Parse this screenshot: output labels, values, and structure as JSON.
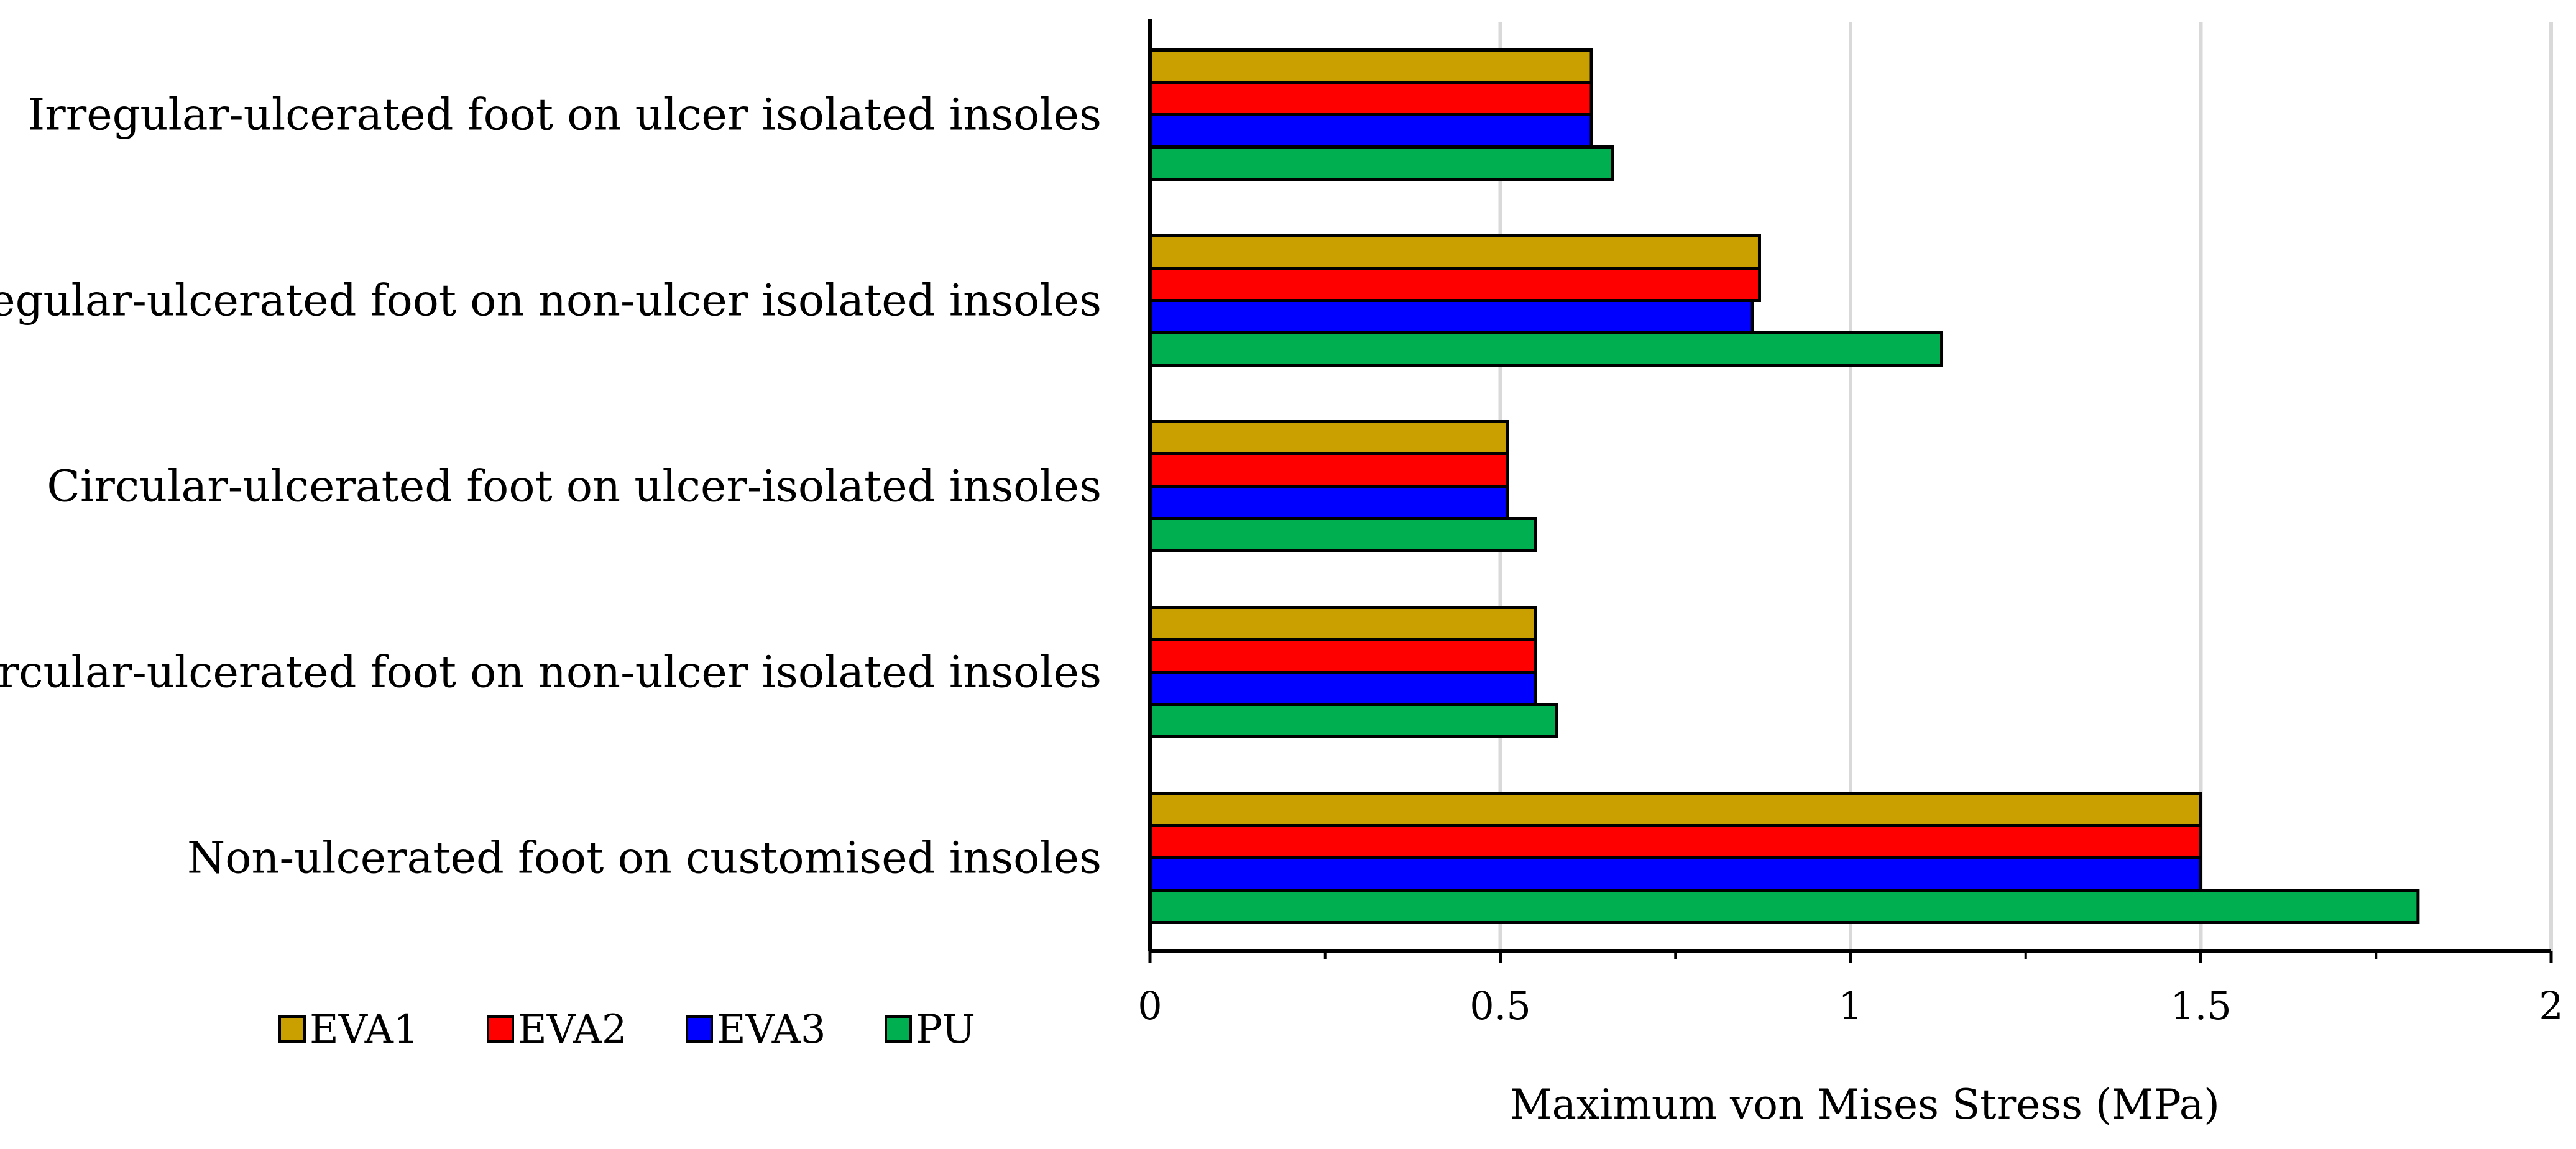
{
  "chart_data": {
    "type": "bar",
    "orientation": "horizontal",
    "title": "",
    "xlabel": "Maximum von Mises Stress (MPa)",
    "ylabel": "",
    "xlim": [
      0,
      2
    ],
    "x_ticks": [
      "0",
      "0.5",
      "1",
      "1.5",
      "2"
    ],
    "grid": "vertical",
    "legend_position": "bottom-left",
    "categories": [
      "Irregular-ulcerated foot on ulcer isolated insoles",
      "Irregular-ulcerated foot on non-ulcer isolated insoles",
      "Circular-ulcerated foot on ulcer-isolated insoles",
      "Circular-ulcerated foot on non-ulcer isolated insoles",
      "Non-ulcerated foot on customised insoles"
    ],
    "series": [
      {
        "name": "EVA1",
        "color": "#C9A000",
        "values": [
          0.63,
          0.87,
          0.51,
          0.55,
          1.5
        ]
      },
      {
        "name": "EVA2",
        "color": "#FF0000",
        "values": [
          0.63,
          0.87,
          0.51,
          0.55,
          1.5
        ]
      },
      {
        "name": "EVA3",
        "color": "#0000FF",
        "values": [
          0.63,
          0.86,
          0.51,
          0.55,
          1.5
        ]
      },
      {
        "name": "PU",
        "color": "#00B050",
        "values": [
          0.66,
          1.13,
          0.55,
          0.58,
          1.81
        ]
      }
    ]
  }
}
